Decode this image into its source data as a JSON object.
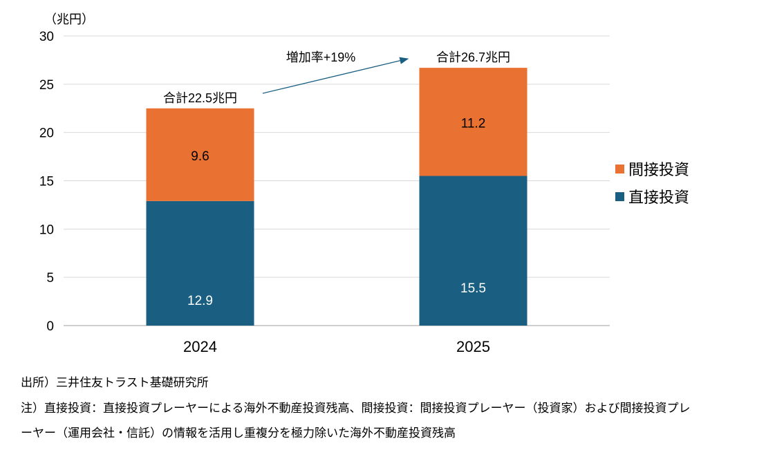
{
  "chart_data": {
    "type": "bar",
    "stacked": true,
    "title": "",
    "unit_label": "（兆円）",
    "xlabel": "",
    "ylabel": "（兆円）",
    "ylim": [
      0,
      30
    ],
    "yticks": [
      0,
      5,
      10,
      15,
      20,
      25,
      30
    ],
    "grid": true,
    "categories": [
      "2024",
      "2025"
    ],
    "series": [
      {
        "name": "直接投資",
        "color": "#1a5f82",
        "label_color": "#ffffff",
        "values": [
          12.9,
          15.5
        ],
        "labels": [
          "12.9",
          "15.5"
        ]
      },
      {
        "name": "間接投資",
        "color": "#e97132",
        "label_color": "#000000",
        "values": [
          9.6,
          11.2
        ],
        "labels": [
          "9.6",
          "11.2"
        ]
      }
    ],
    "totals": [
      22.5,
      26.7
    ],
    "total_labels": [
      "合計22.5兆円",
      "合計26.7兆円"
    ],
    "annotation": {
      "text": "増加率+19%",
      "arrow_color": "#1a5f82"
    },
    "legend": {
      "placement": "right",
      "order": [
        "間接投資",
        "直接投資"
      ]
    }
  },
  "notes": {
    "source": "出所）三井住友トラスト基礎研究所",
    "note_line1": "注）直接投資：直接投資プレーヤーによる海外不動産投資残高、間接投資：間接投資プレーヤー（投資家）および間接投資プレ",
    "note_line2": "ーヤー（運用会社・信託）の情報を活用し重複分を極力除いた海外不動産投資残高"
  }
}
